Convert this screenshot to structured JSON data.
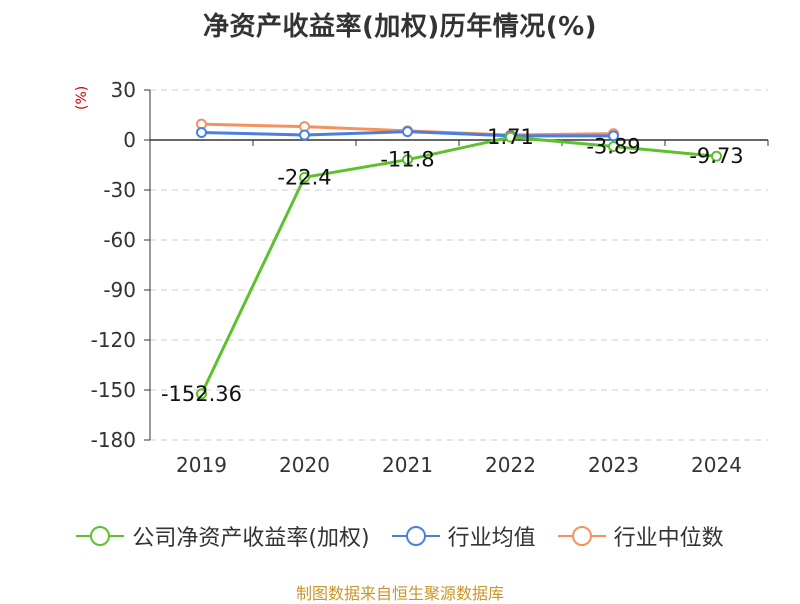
{
  "chart_data": {
    "type": "line",
    "title": "净资产收益率(加权)历年情况(%)",
    "ylabel": "(%)",
    "categories": [
      "2019",
      "2020",
      "2021",
      "2022",
      "2023",
      "2024"
    ],
    "ylim": [
      -180,
      30
    ],
    "yticks": [
      30,
      0,
      -30,
      -60,
      -90,
      -120,
      -150,
      -180
    ],
    "grid": true,
    "legend_position": "bottom",
    "series": [
      {
        "name": "公司净资产收益率(加权)",
        "color": "#5cc12c",
        "values": [
          -152.36,
          -22.4,
          -11.8,
          1.71,
          -3.89,
          -9.73
        ],
        "labels": [
          "-152.36",
          "-22.4",
          "-11.8",
          "1.71",
          "-3.89",
          "-9.73"
        ]
      },
      {
        "name": "行业均值",
        "color": "#4a7fe0",
        "values": [
          4.5,
          3.0,
          5.0,
          2.5,
          2.5,
          null
        ]
      },
      {
        "name": "行业中位数",
        "color": "#f5915f",
        "values": [
          9.5,
          8.0,
          5.5,
          3.0,
          3.8,
          null
        ]
      }
    ]
  },
  "source": "制图数据来自恒生聚源数据库"
}
